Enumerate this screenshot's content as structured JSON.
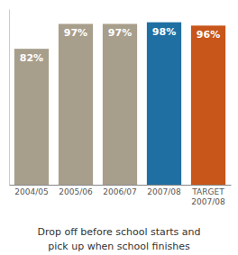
{
  "chart_data": {
    "type": "bar",
    "categories": [
      "2004/05",
      "2005/06",
      "2006/07",
      "2007/08",
      "TARGET\n2007/08"
    ],
    "values": [
      82,
      97,
      97,
      98,
      96
    ],
    "value_labels": [
      "82%",
      "97%",
      "97%",
      "98%",
      "96%"
    ],
    "colors": [
      "#a89e8c",
      "#a89e8c",
      "#a89e8c",
      "#1f6fa3",
      "#c8561a"
    ],
    "ylim": [
      0,
      106
    ],
    "data_labels": true,
    "tick_labels": "x",
    "xlabel": "Drop off before school starts and\npick up when school finishes"
  }
}
